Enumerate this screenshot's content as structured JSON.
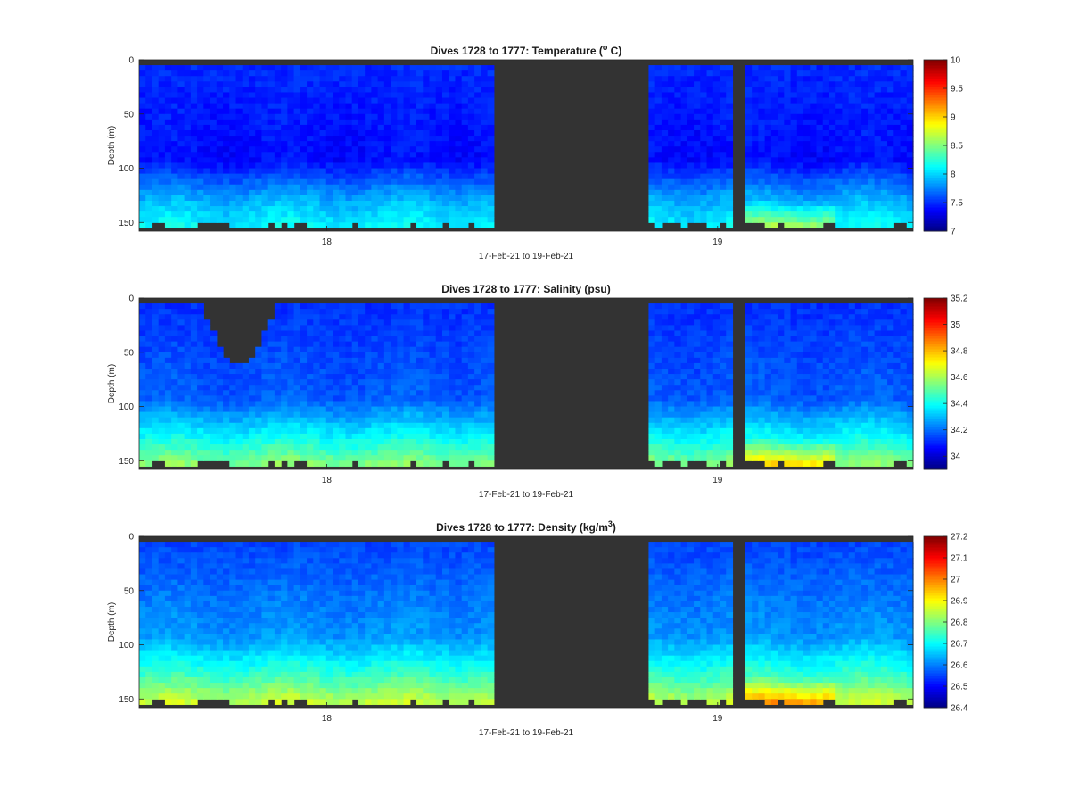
{
  "chart_data": [
    {
      "type": "heatmap",
      "title_prefix": "Dives 1728 to 1777: Temperature (",
      "title_sup": "o",
      "title_suffix": " C)",
      "xlabel": "17-Feb-21 to 19-Feb-21",
      "ylabel": "Depth (m)",
      "xlim": [
        17.52,
        19.5
      ],
      "ylim": [
        158,
        0
      ],
      "yticks": [
        0,
        50,
        100,
        150
      ],
      "xticks": [
        18,
        19
      ],
      "clim": [
        7,
        10
      ],
      "cbar_ticks": [
        7,
        7.5,
        8,
        8.5,
        9,
        9.5,
        10
      ],
      "colormap": "jet",
      "background_color": "#333333",
      "data_gaps": [
        [
          18.43,
          18.82
        ],
        [
          19.04,
          19.07
        ]
      ],
      "field": {
        "surface": 7.5,
        "mid": 7.4,
        "deep": 7.9,
        "bottom": 8.1,
        "bottom_max_late": 8.6
      }
    },
    {
      "type": "heatmap",
      "title_prefix": "Dives 1728 to 1777: Salinity (psu)",
      "title_sup": "",
      "title_suffix": "",
      "xlabel": "17-Feb-21 to 19-Feb-21",
      "ylabel": "Depth (m)",
      "xlim": [
        17.52,
        19.5
      ],
      "ylim": [
        158,
        0
      ],
      "yticks": [
        0,
        50,
        100,
        150
      ],
      "xticks": [
        18,
        19
      ],
      "clim": [
        33.9,
        35.2
      ],
      "cbar_ticks": [
        34,
        34.2,
        34.4,
        34.6,
        34.8,
        35,
        35.2
      ],
      "colormap": "jet",
      "background_color": "#333333",
      "data_gaps": [
        [
          18.43,
          18.82
        ],
        [
          19.04,
          19.07
        ]
      ],
      "field": {
        "surface": 34.12,
        "mid": 34.18,
        "deep": 34.4,
        "bottom": 34.55,
        "bottom_max_late": 34.75
      }
    },
    {
      "type": "heatmap",
      "title_prefix": "Dives 1728 to 1777: Density (kg/m",
      "title_sup": "3",
      "title_suffix": ")",
      "xlabel": "17-Feb-21 to 19-Feb-21",
      "ylabel": "Depth (m)",
      "xlim": [
        17.52,
        19.5
      ],
      "ylim": [
        158,
        0
      ],
      "yticks": [
        0,
        50,
        100,
        150
      ],
      "xticks": [
        18,
        19
      ],
      "clim": [
        26.4,
        27.2
      ],
      "cbar_ticks": [
        26.4,
        26.5,
        26.6,
        26.7,
        26.8,
        26.9,
        27,
        27.1,
        27.2
      ],
      "colormap": "jet",
      "background_color": "#333333",
      "data_gaps": [
        [
          18.43,
          18.82
        ],
        [
          19.04,
          19.07
        ]
      ],
      "field": {
        "surface": 26.55,
        "mid": 26.62,
        "deep": 26.75,
        "bottom": 26.85,
        "bottom_max_late": 26.98
      }
    }
  ]
}
